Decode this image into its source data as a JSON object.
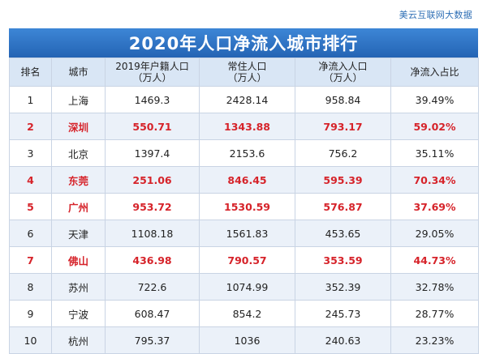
{
  "source": "美云互联网大数据",
  "title": "2020年人口净流入城市排行",
  "headers": {
    "rank": "排名",
    "city": "城市",
    "hukou_l1": "2019年户籍人口",
    "hukou_l2": "（万人）",
    "resident_l1": "常住人口",
    "resident_l2": "（万人）",
    "inflow_l1": "净流入人口",
    "inflow_l2": "（万人）",
    "ratio": "净流入占比"
  },
  "rows": [
    {
      "rank": "1",
      "city": "上海",
      "hukou": "1469.3",
      "resident": "2428.14",
      "inflow": "958.84",
      "ratio": "39.49%",
      "highlight": false
    },
    {
      "rank": "2",
      "city": "深圳",
      "hukou": "550.71",
      "resident": "1343.88",
      "inflow": "793.17",
      "ratio": "59.02%",
      "highlight": true
    },
    {
      "rank": "3",
      "city": "北京",
      "hukou": "1397.4",
      "resident": "2153.6",
      "inflow": "756.2",
      "ratio": "35.11%",
      "highlight": false
    },
    {
      "rank": "4",
      "city": "东莞",
      "hukou": "251.06",
      "resident": "846.45",
      "inflow": "595.39",
      "ratio": "70.34%",
      "highlight": true
    },
    {
      "rank": "5",
      "city": "广州",
      "hukou": "953.72",
      "resident": "1530.59",
      "inflow": "576.87",
      "ratio": "37.69%",
      "highlight": true
    },
    {
      "rank": "6",
      "city": "天津",
      "hukou": "1108.18",
      "resident": "1561.83",
      "inflow": "453.65",
      "ratio": "29.05%",
      "highlight": false
    },
    {
      "rank": "7",
      "city": "佛山",
      "hukou": "436.98",
      "resident": "790.57",
      "inflow": "353.59",
      "ratio": "44.73%",
      "highlight": true
    },
    {
      "rank": "8",
      "city": "苏州",
      "hukou": "722.6",
      "resident": "1074.99",
      "inflow": "352.39",
      "ratio": "32.78%",
      "highlight": false
    },
    {
      "rank": "9",
      "city": "宁波",
      "hukou": "608.47",
      "resident": "854.2",
      "inflow": "245.73",
      "ratio": "28.77%",
      "highlight": false
    },
    {
      "rank": "10",
      "city": "杭州",
      "hukou": "795.37",
      "resident": "1036",
      "inflow": "240.63",
      "ratio": "23.23%",
      "highlight": false
    }
  ],
  "colors": {
    "title_bg": "#2e72c4",
    "header_bg": "#d9e6f5",
    "row_alt_bg": "#ebf1f9",
    "highlight_text": "#d6232a",
    "source_text": "#2f6fb5"
  }
}
